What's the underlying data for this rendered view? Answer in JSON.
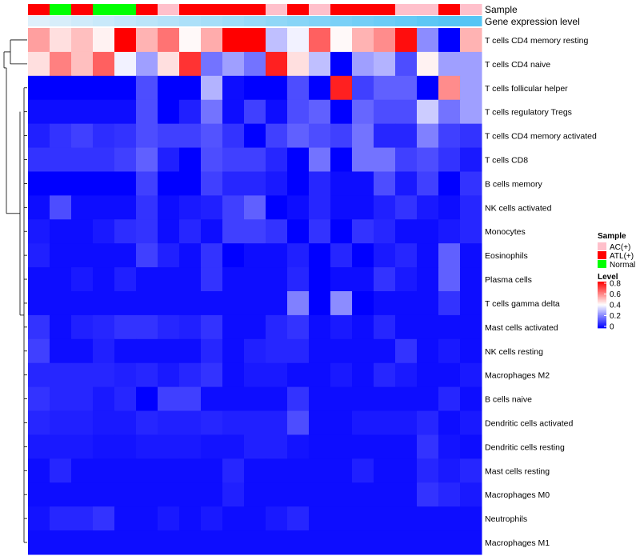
{
  "chart_data": {
    "type": "heatmap",
    "title": "",
    "annotation_labels": [
      "Sample",
      "Gene expression level"
    ],
    "samples": [
      "ATL(+)",
      "Normal",
      "ATL(+)",
      "Normal",
      "Normal",
      "ATL(+)",
      "AC(+)",
      "ATL(+)",
      "ATL(+)",
      "ATL(+)",
      "ATL(+)",
      "AC(+)",
      "ATL(+)",
      "AC(+)",
      "ATL(+)",
      "ATL(+)",
      "ATL(+)",
      "AC(+)",
      "AC(+)",
      "ATL(+)",
      "AC(+)"
    ],
    "gene_expression": [
      0.05,
      0.1,
      0.15,
      0.2,
      0.25,
      0.3,
      0.35,
      0.4,
      0.45,
      0.5,
      0.55,
      0.6,
      0.65,
      0.7,
      0.75,
      0.8,
      0.85,
      0.9,
      0.95,
      1.0,
      1.0
    ],
    "rows": [
      "T cells CD4 memory resting",
      "T cells CD4 naive",
      "T cells follicular helper",
      "T cells regulatory  Tregs",
      "T cells CD4 memory activated",
      "T cells CD8",
      "B cells memory",
      "NK cells activated",
      "Monocytes",
      "Eosinophils",
      "Plasma cells",
      "T cells gamma delta",
      "Mast cells activated",
      "NK cells resting",
      "Macrophages M2",
      "B cells naive",
      "Dendritic cells activated",
      "Dendritic cells resting",
      "Mast cells resting",
      "Macrophages M0",
      "Neutrophils",
      "Macrophages M1"
    ],
    "values": [
      [
        0.55,
        0.45,
        0.5,
        0.42,
        0.8,
        0.52,
        0.62,
        0.41,
        0.53,
        0.8,
        0.8,
        0.3,
        0.38,
        0.65,
        0.41,
        0.52,
        0.58,
        0.78,
        0.22,
        0.0,
        0.52
      ],
      [
        0.45,
        0.6,
        0.5,
        0.65,
        0.38,
        0.25,
        0.45,
        0.72,
        0.18,
        0.25,
        0.18,
        0.75,
        0.45,
        0.3,
        0.0,
        0.25,
        0.28,
        0.12,
        0.42,
        0.25,
        0.25
      ],
      [
        0.0,
        0.0,
        0.0,
        0.0,
        0.0,
        0.12,
        0.0,
        0.0,
        0.28,
        0.02,
        0.0,
        0.0,
        0.12,
        0.0,
        0.75,
        0.1,
        0.15,
        0.15,
        0.0,
        0.58,
        0.25
      ],
      [
        0.02,
        0.02,
        0.02,
        0.02,
        0.02,
        0.12,
        0.0,
        0.05,
        0.18,
        0.02,
        0.1,
        0.02,
        0.12,
        0.15,
        0.0,
        0.16,
        0.12,
        0.12,
        0.32,
        0.18,
        0.25
      ],
      [
        0.05,
        0.08,
        0.1,
        0.07,
        0.08,
        0.12,
        0.1,
        0.1,
        0.13,
        0.08,
        0.0,
        0.1,
        0.15,
        0.12,
        0.1,
        0.18,
        0.06,
        0.06,
        0.2,
        0.1,
        0.08
      ],
      [
        0.08,
        0.08,
        0.08,
        0.08,
        0.1,
        0.15,
        0.05,
        0.0,
        0.12,
        0.1,
        0.1,
        0.06,
        0.0,
        0.18,
        0.0,
        0.18,
        0.18,
        0.1,
        0.12,
        0.08,
        0.04
      ],
      [
        0.0,
        0.0,
        0.0,
        0.0,
        0.0,
        0.1,
        0.0,
        0.0,
        0.1,
        0.06,
        0.06,
        0.04,
        0.0,
        0.06,
        0.02,
        0.02,
        0.12,
        0.04,
        0.1,
        0.0,
        0.08
      ],
      [
        0.02,
        0.12,
        0.02,
        0.02,
        0.02,
        0.08,
        0.02,
        0.04,
        0.05,
        0.1,
        0.15,
        0.0,
        0.02,
        0.06,
        0.02,
        0.02,
        0.05,
        0.08,
        0.04,
        0.02,
        0.06
      ],
      [
        0.04,
        0.02,
        0.02,
        0.04,
        0.07,
        0.08,
        0.02,
        0.06,
        0.02,
        0.1,
        0.1,
        0.08,
        0.0,
        0.08,
        0.0,
        0.08,
        0.06,
        0.02,
        0.02,
        0.04,
        0.06
      ],
      [
        0.05,
        0.02,
        0.02,
        0.02,
        0.02,
        0.1,
        0.05,
        0.02,
        0.08,
        0.0,
        0.02,
        0.02,
        0.05,
        0.0,
        0.06,
        0.0,
        0.04,
        0.06,
        0.02,
        0.15,
        0.02
      ],
      [
        0.02,
        0.02,
        0.04,
        0.02,
        0.05,
        0.02,
        0.02,
        0.02,
        0.08,
        0.02,
        0.02,
        0.02,
        0.06,
        0.0,
        0.02,
        0.02,
        0.08,
        0.04,
        0.02,
        0.15,
        0.02
      ],
      [
        0.02,
        0.02,
        0.02,
        0.02,
        0.02,
        0.02,
        0.02,
        0.02,
        0.02,
        0.02,
        0.02,
        0.02,
        0.2,
        0.0,
        0.22,
        0.0,
        0.02,
        0.02,
        0.02,
        0.08,
        0.02
      ],
      [
        0.08,
        0.02,
        0.05,
        0.06,
        0.08,
        0.08,
        0.06,
        0.05,
        0.08,
        0.02,
        0.02,
        0.06,
        0.08,
        0.02,
        0.04,
        0.02,
        0.06,
        0.02,
        0.02,
        0.02,
        0.02
      ],
      [
        0.1,
        0.02,
        0.02,
        0.05,
        0.02,
        0.02,
        0.02,
        0.02,
        0.06,
        0.02,
        0.05,
        0.06,
        0.06,
        0.02,
        0.02,
        0.02,
        0.02,
        0.08,
        0.02,
        0.04,
        0.02
      ],
      [
        0.06,
        0.06,
        0.06,
        0.06,
        0.05,
        0.06,
        0.04,
        0.06,
        0.08,
        0.02,
        0.04,
        0.04,
        0.02,
        0.02,
        0.04,
        0.02,
        0.06,
        0.04,
        0.02,
        0.02,
        0.04
      ],
      [
        0.08,
        0.06,
        0.06,
        0.04,
        0.06,
        0.0,
        0.1,
        0.1,
        0.02,
        0.02,
        0.02,
        0.02,
        0.08,
        0.02,
        0.02,
        0.02,
        0.02,
        0.02,
        0.02,
        0.06,
        0.02
      ],
      [
        0.06,
        0.05,
        0.05,
        0.04,
        0.04,
        0.06,
        0.05,
        0.05,
        0.06,
        0.05,
        0.05,
        0.05,
        0.12,
        0.02,
        0.02,
        0.04,
        0.04,
        0.04,
        0.06,
        0.02,
        0.04
      ],
      [
        0.04,
        0.04,
        0.04,
        0.03,
        0.03,
        0.04,
        0.04,
        0.04,
        0.03,
        0.03,
        0.05,
        0.05,
        0.03,
        0.02,
        0.02,
        0.02,
        0.02,
        0.02,
        0.08,
        0.03,
        0.02
      ],
      [
        0.02,
        0.06,
        0.02,
        0.02,
        0.02,
        0.02,
        0.02,
        0.02,
        0.02,
        0.06,
        0.02,
        0.02,
        0.02,
        0.02,
        0.02,
        0.05,
        0.02,
        0.02,
        0.06,
        0.04,
        0.06
      ],
      [
        0.02,
        0.02,
        0.02,
        0.02,
        0.02,
        0.02,
        0.02,
        0.02,
        0.02,
        0.05,
        0.02,
        0.02,
        0.02,
        0.02,
        0.02,
        0.02,
        0.02,
        0.02,
        0.08,
        0.06,
        0.04
      ],
      [
        0.03,
        0.06,
        0.06,
        0.08,
        0.02,
        0.02,
        0.04,
        0.02,
        0.04,
        0.02,
        0.02,
        0.04,
        0.06,
        0.02,
        0.02,
        0.02,
        0.02,
        0.02,
        0.02,
        0.02,
        0.02
      ],
      [
        0.02,
        0.02,
        0.02,
        0.02,
        0.02,
        0.02,
        0.02,
        0.02,
        0.02,
        0.02,
        0.02,
        0.02,
        0.02,
        0.02,
        0.02,
        0.02,
        0.02,
        0.02,
        0.02,
        0.02,
        0.02
      ]
    ],
    "legend": {
      "sample_title": "Sample",
      "sample_entries": [
        {
          "label": "AC(+)",
          "color": "#ffc0cb"
        },
        {
          "label": "ATL(+)",
          "color": "#ff0000"
        },
        {
          "label": "Normal",
          "color": "#00ff00"
        }
      ],
      "level_title": "Level",
      "level_ticks": [
        "0.8",
        "0.6",
        "0.4",
        "0.2",
        "0"
      ],
      "level_tick_values": [
        0.8,
        0.6,
        0.4,
        0.2,
        0
      ],
      "placement": "right"
    },
    "color_scale": {
      "low": "#0000ff",
      "mid": "#ffffff",
      "high": "#ff0000",
      "min": 0,
      "mid_value": 0.4,
      "max": 0.8
    },
    "gene_expression_colors": {
      "low": "#e6f2fb",
      "high": "#56c5f5"
    }
  }
}
